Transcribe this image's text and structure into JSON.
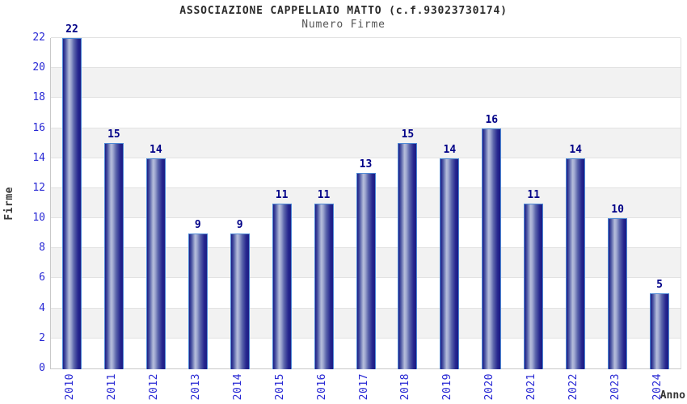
{
  "chart_data": {
    "type": "bar",
    "title": "ASSOCIAZIONE CAPPELLAIO MATTO (c.f.93023730174)",
    "subtitle": "Numero Firme",
    "xlabel": "Anno",
    "ylabel": "Firme",
    "categories": [
      "2010",
      "2011",
      "2012",
      "2013",
      "2014",
      "2015",
      "2016",
      "2017",
      "2018",
      "2019",
      "2020",
      "2021",
      "2022",
      "2023",
      "2024"
    ],
    "values": [
      22,
      15,
      14,
      9,
      9,
      11,
      11,
      13,
      15,
      14,
      16,
      11,
      14,
      10,
      5
    ],
    "ylim": [
      0,
      22
    ],
    "ytick_step": 2,
    "grid": true,
    "banded_background": true,
    "legend_position": "none"
  },
  "colors": {
    "tick_label_blue": "#2828d4",
    "value_label_navy": "#000087",
    "bar_edge_navy": "#1b1b85",
    "bar_mid": "#4d58a4",
    "bar_highlight": "#b6bedb",
    "bar_border_light_blue": "#4e8ad6",
    "band_gray": "#f2f2f2",
    "band_white": "#ffffff",
    "gridline_gray": "#e2e2e2",
    "axis_line_gray": "#c9c9c9",
    "title_color": "#2b2b2b",
    "subtitle_color": "#555555",
    "axis_title_color": "#3a3a3a"
  }
}
